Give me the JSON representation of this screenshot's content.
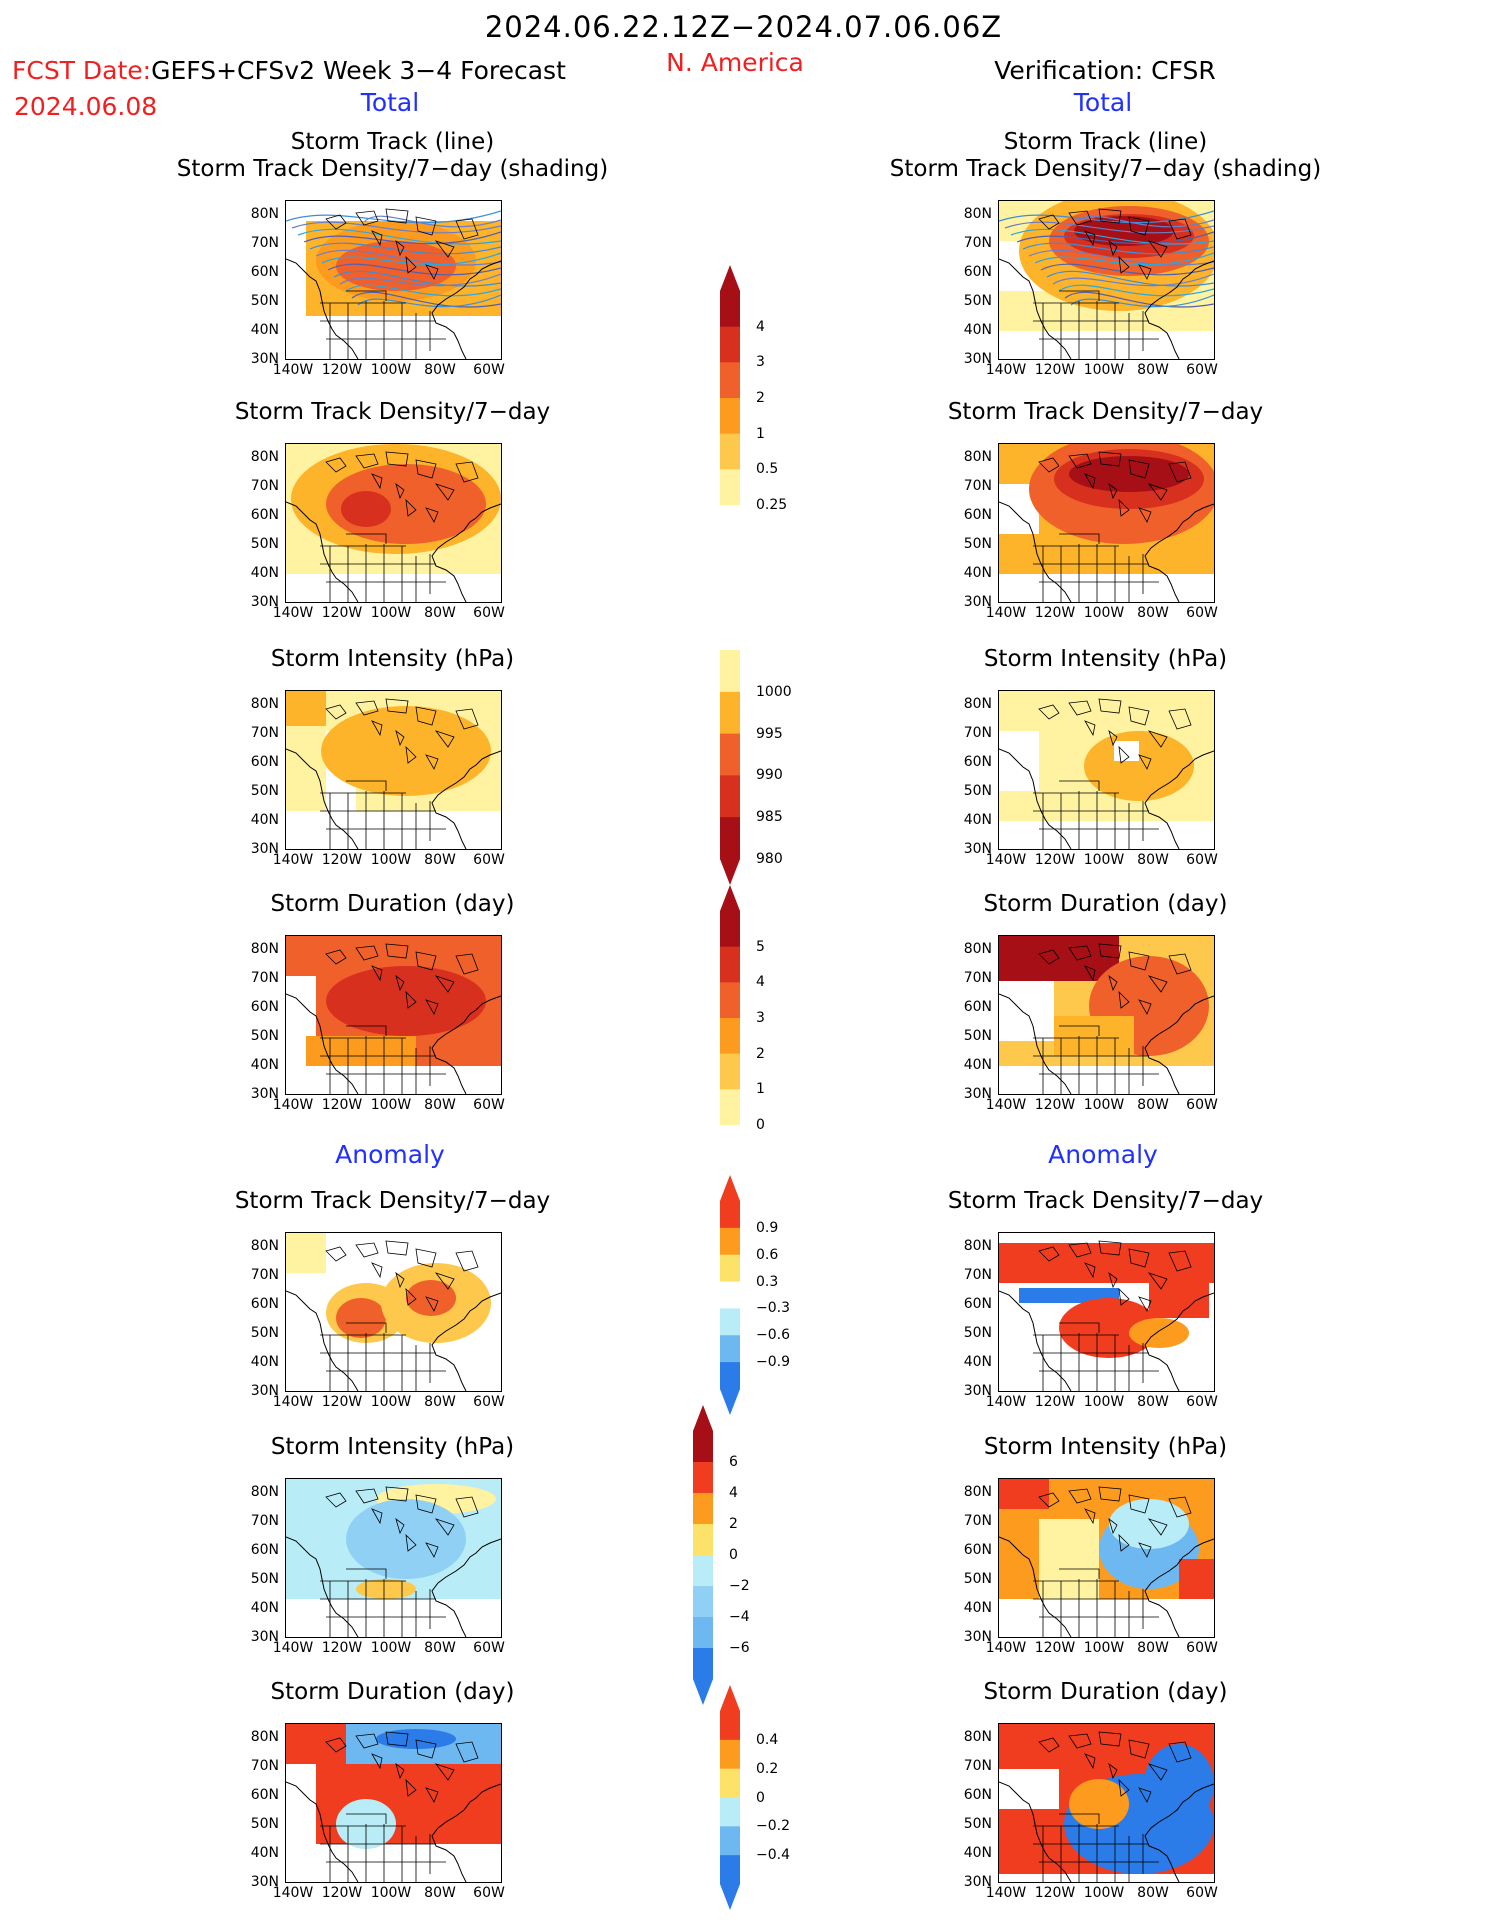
{
  "header": {
    "date_range": "2024.06.22.12Z−2024.07.06.06Z",
    "fcst_label": "FCST Date:",
    "fcst_model": "GEFS+CFSv2 Week 3−4 Forecast",
    "fcst_date": "2024.06.08",
    "region": "N. America",
    "verification": "Verification: CFSR"
  },
  "sections": {
    "total": "Total",
    "anomaly": "Anomaly"
  },
  "titles": {
    "track_line": "Storm Track (line)",
    "track_shading": "Storm Track Density/7−day (shading)",
    "density": "Storm Track Density/7−day",
    "intensity": "Storm Intensity (hPa)",
    "duration": "Storm Duration (day)"
  },
  "axes": {
    "lat": [
      "80N",
      "70N",
      "60N",
      "50N",
      "40N",
      "30N"
    ],
    "lon": [
      "140W",
      "120W",
      "100W",
      "80W",
      "60W"
    ]
  },
  "colorbars": {
    "density": {
      "labels": [
        "4",
        "3",
        "2",
        "1",
        "0.5",
        "0.25"
      ],
      "colors": [
        "#a50f15",
        "#d7301f",
        "#f0602a",
        "#fd9b1f",
        "#fdc84b",
        "#fff2a0"
      ]
    },
    "intensity": {
      "labels": [
        "1000",
        "995",
        "990",
        "985",
        "980"
      ],
      "colors": [
        "#fff2a0",
        "#fdb32a",
        "#f0602a",
        "#d7301f",
        "#a50f15"
      ]
    },
    "duration": {
      "labels": [
        "5",
        "4",
        "3",
        "2",
        "1",
        "0"
      ],
      "colors": [
        "#a50f15",
        "#d7301f",
        "#f0602a",
        "#fd9b1f",
        "#fdc84b",
        "#fff2a0"
      ]
    },
    "density_anom": {
      "labels": [
        "0.9",
        "0.6",
        "0.3",
        "−0.3",
        "−0.6",
        "−0.9"
      ],
      "colors": [
        "#f03c1f",
        "#fd9b1f",
        "#fde26a",
        "#ffffff",
        "#b8ecf7",
        "#6db8f0",
        "#2b7be8"
      ]
    },
    "intensity_anom": {
      "labels": [
        "6",
        "4",
        "2",
        "0",
        "−2",
        "−4",
        "−6"
      ],
      "colors": [
        "#a50f15",
        "#f03c1f",
        "#fd9b1f",
        "#fde26a",
        "#b8ecf7",
        "#90d0f5",
        "#6db8f0",
        "#2b7be8"
      ]
    },
    "duration_anom": {
      "labels": [
        "0.4",
        "0.2",
        "0",
        "−0.2",
        "−0.4"
      ],
      "colors": [
        "#f03c1f",
        "#fd9b1f",
        "#fde26a",
        "#b8ecf7",
        "#6db8f0",
        "#2b7be8"
      ]
    }
  }
}
